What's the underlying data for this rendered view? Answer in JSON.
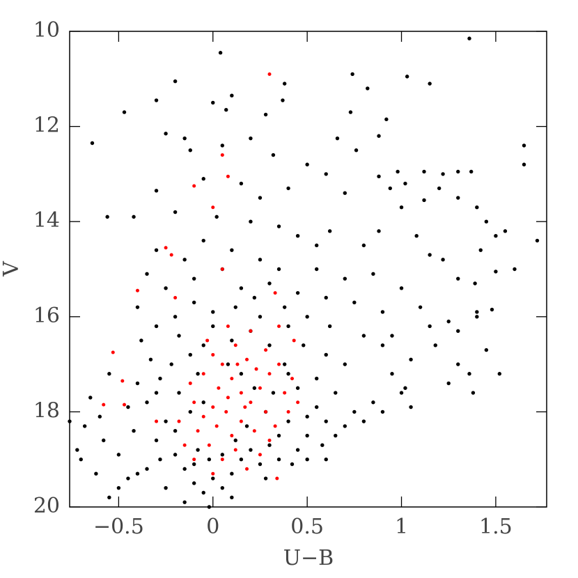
{
  "chart_data": {
    "type": "scatter",
    "x_label": "U−B",
    "y_label": "V",
    "xlim": [
      -0.76,
      1.77
    ],
    "ylim": [
      20,
      10
    ],
    "y_inverted": true,
    "xticks": [
      {
        "value": -0.5,
        "label": "−0.5"
      },
      0,
      0.5,
      1,
      1.5
    ],
    "yticks": [
      10,
      12,
      14,
      16,
      18,
      20
    ],
    "grid": false,
    "series": [
      {
        "color": "#000000",
        "x": [
          1.36,
          0.04,
          0.74,
          1.03,
          1.15,
          0.38,
          0.82,
          -0.2,
          -0.3,
          -0.47,
          0.1,
          0.0,
          0.37,
          0.28,
          0.07,
          0.73,
          0.92,
          -0.64,
          -0.25,
          -0.15,
          0.2,
          0.66,
          0.88,
          0.76,
          1.65,
          1.65,
          -0.12,
          0.05,
          0.32,
          0.5,
          0.98,
          1.12,
          1.22,
          1.3,
          1.37,
          0.88,
          1.02,
          1.2,
          0.6,
          -0.3,
          -0.05,
          0.15,
          0.4,
          0.25,
          0.7,
          0.94,
          1.0,
          1.12,
          1.3,
          1.4,
          1.45,
          1.55,
          1.72,
          1.5,
          1.42,
          1.6,
          1.5,
          1.39,
          1.3,
          1.22,
          1.15,
          1.08,
          0.88,
          0.8,
          0.62,
          0.55,
          -0.56,
          -0.42,
          -0.2,
          0.02,
          0.2,
          0.35,
          0.45,
          -0.3,
          -0.15,
          -0.05,
          0.1,
          0.25,
          0.35,
          0.55,
          0.7,
          0.85,
          1.0,
          -0.35,
          -0.25,
          -0.1,
          0.05,
          0.15,
          0.3,
          0.45,
          0.6,
          0.75,
          0.9,
          1.1,
          1.25,
          1.4,
          1.48,
          1.3,
          1.18,
          1.05,
          0.95,
          -0.4,
          -0.3,
          -0.2,
          -0.1,
          0.0,
          0.12,
          0.22,
          0.38,
          0.5,
          0.62,
          0.8,
          0.9,
          1.3,
          1.36,
          1.25,
          1.38,
          1.52,
          1.02,
          0.85,
          1.05,
          0.7,
          0.6,
          0.55,
          0.65,
          0.75,
          0.8,
          0.6,
          0.5,
          0.45,
          0.55,
          0.4,
          0.48,
          -0.38,
          -0.33,
          -0.28,
          -0.35,
          -0.25,
          -0.3,
          -0.2,
          -0.15,
          -0.1,
          -0.05,
          0.0,
          0.05,
          0.1,
          0.15,
          0.2,
          0.25,
          0.3,
          0.35,
          0.4,
          -0.18,
          -0.12,
          -0.08,
          -0.18,
          -0.12,
          -0.2,
          -0.08,
          -0.02,
          0.05,
          0.12,
          0.18,
          0.28,
          0.32,
          0.38,
          0.3,
          0.2,
          0.1,
          0.0,
          -0.05,
          0.08,
          0.15,
          0.22,
          -0.22,
          -0.28,
          -0.35,
          -0.4,
          -0.45,
          -0.5,
          -0.55,
          -0.5,
          -0.58,
          -0.6,
          -0.65,
          -0.55,
          -0.68,
          -0.72,
          -0.76,
          -0.7,
          -0.62,
          -0.45,
          -0.42,
          0.1,
          -0.15,
          -0.1,
          0.28,
          0.35,
          0.42,
          0.5,
          0.58,
          0.65,
          0.7,
          0.9,
          1.0,
          0.95,
          1.15,
          1.45,
          1.4,
          0.25,
          0.4,
          -0.05,
          0.45,
          0.5,
          -0.3,
          -0.4,
          0.6,
          -0.25,
          -0.02
        ],
        "y": [
          10.15,
          10.45,
          10.9,
          10.95,
          11.1,
          11.1,
          11.2,
          11.05,
          11.45,
          11.7,
          11.35,
          11.5,
          11.45,
          11.75,
          11.65,
          11.7,
          11.85,
          12.35,
          12.15,
          12.25,
          12.25,
          12.25,
          12.2,
          12.5,
          12.4,
          12.8,
          12.5,
          12.4,
          12.6,
          12.8,
          12.95,
          12.95,
          13.0,
          12.95,
          12.95,
          13.05,
          13.2,
          13.3,
          13.0,
          13.35,
          13.1,
          13.2,
          13.3,
          13.5,
          13.4,
          13.3,
          13.7,
          13.55,
          13.5,
          13.7,
          14.0,
          14.2,
          14.4,
          14.3,
          14.6,
          15.0,
          15.05,
          15.3,
          15.2,
          14.8,
          14.7,
          14.3,
          14.2,
          14.5,
          14.2,
          14.5,
          13.9,
          13.9,
          13.8,
          13.9,
          14.0,
          14.1,
          14.3,
          14.6,
          14.8,
          14.4,
          14.6,
          14.8,
          15.0,
          15.0,
          15.2,
          15.1,
          15.4,
          15.1,
          15.4,
          15.2,
          15.0,
          15.4,
          15.3,
          15.5,
          15.6,
          15.7,
          15.9,
          15.8,
          16.1,
          15.9,
          15.85,
          16.3,
          16.6,
          16.9,
          17.2,
          15.8,
          16.2,
          16.0,
          15.7,
          15.9,
          15.8,
          15.6,
          15.8,
          16.0,
          16.2,
          16.4,
          16.6,
          17.0,
          17.2,
          17.4,
          17.6,
          17.2,
          17.5,
          17.8,
          17.9,
          17.0,
          16.8,
          17.3,
          17.6,
          18.0,
          18.2,
          18.2,
          18.5,
          18.8,
          17.9,
          17.2,
          16.6,
          16.5,
          16.9,
          17.3,
          17.8,
          18.2,
          18.6,
          18.9,
          19.2,
          19.5,
          19.7,
          19.4,
          19.6,
          19.3,
          19.0,
          18.8,
          19.1,
          18.7,
          18.5,
          18.2,
          16.4,
          16.8,
          17.2,
          17.6,
          18.0,
          18.4,
          18.8,
          19.0,
          18.9,
          18.6,
          18.3,
          18.0,
          17.6,
          17.0,
          16.6,
          16.3,
          16.5,
          16.2,
          16.6,
          17.0,
          17.2,
          17.5,
          17.0,
          19.0,
          19.2,
          19.3,
          19.4,
          19.6,
          19.8,
          18.9,
          18.6,
          18.1,
          17.7,
          17.2,
          18.3,
          18.8,
          18.2,
          19.0,
          19.3,
          17.9,
          18.4,
          19.8,
          19.9,
          19.1,
          19.4,
          19.0,
          19.1,
          19.0,
          18.7,
          18.5,
          18.3,
          18.0,
          17.6,
          16.4,
          16.2,
          16.7,
          16.0,
          16.0,
          16.2,
          17.8,
          17.5,
          18.1,
          17.6,
          17.4,
          19.0,
          19.6,
          20.0
        ]
      },
      {
        "color": "#ff0000",
        "x": [
          0.3,
          0.05,
          0.08,
          -0.1,
          0.0,
          -0.25,
          -0.22,
          -0.4,
          -0.2,
          0.33,
          0.05,
          -0.53,
          -0.48,
          -0.58,
          -0.47,
          -0.3,
          0.34,
          0.45,
          0.43,
          0.0,
          0.05,
          0.1,
          0.15,
          0.2,
          0.25,
          0.3,
          0.35,
          0.18,
          0.08,
          0.0,
          -0.05,
          0.02,
          0.1,
          0.15,
          0.22,
          0.28,
          0.33,
          0.12,
          0.05,
          -0.02,
          -0.08,
          -0.1,
          -0.12,
          -0.05,
          0.03,
          0.12,
          0.2,
          0.28,
          0.38,
          0.4,
          0.25,
          0.18,
          0.0,
          -0.1,
          -0.15,
          -0.18,
          0.07,
          0.17,
          0.23,
          0.13,
          0.3,
          -0.03,
          0.08,
          0.35,
          0.42
        ],
        "y": [
          10.9,
          12.6,
          13.05,
          13.25,
          13.7,
          14.55,
          14.7,
          15.45,
          15.6,
          15.5,
          15.0,
          16.75,
          17.35,
          17.85,
          17.85,
          18.2,
          19.4,
          17.8,
          16.5,
          16.8,
          17.0,
          17.3,
          17.6,
          17.8,
          17.5,
          17.2,
          17.0,
          16.9,
          17.7,
          17.9,
          18.1,
          18.3,
          18.5,
          18.2,
          18.4,
          18.0,
          18.3,
          18.8,
          19.0,
          18.7,
          18.4,
          17.8,
          17.4,
          17.2,
          17.5,
          16.6,
          16.3,
          16.7,
          17.6,
          18.0,
          18.9,
          19.2,
          19.3,
          19.0,
          18.7,
          18.2,
          18.0,
          17.9,
          17.1,
          17.0,
          18.6,
          16.5,
          16.2,
          16.2,
          17.3
        ]
      }
    ]
  }
}
